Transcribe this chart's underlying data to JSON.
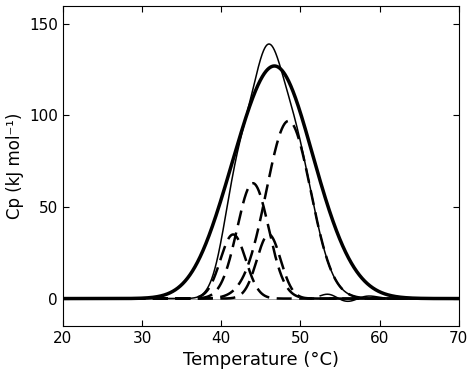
{
  "xlim": [
    20,
    70
  ],
  "ylim": [
    -15,
    160
  ],
  "xlabel": "Temperature (°C)",
  "ylabel": "Cp (kJ mol⁻¹)",
  "xticks": [
    20,
    30,
    40,
    50,
    60,
    70
  ],
  "yticks": [
    0,
    50,
    100,
    150
  ],
  "components": [
    {
      "mu": 48.5,
      "sigma": 2.8,
      "amplitude": 97.0,
      "lw": 1.8
    },
    {
      "mu": 44.0,
      "sigma": 2.0,
      "amplitude": 63.0,
      "lw": 1.8
    },
    {
      "mu": 41.5,
      "sigma": 1.6,
      "amplitude": 35.0,
      "lw": 1.8
    },
    {
      "mu": 46.0,
      "sigma": 1.5,
      "amplitude": 35.0,
      "lw": 1.8
    }
  ],
  "exp_components": [
    {
      "mu": 48.8,
      "sigma": 3.5,
      "amplitude": 85.0
    },
    {
      "mu": 43.5,
      "sigma": 3.0,
      "amplitude": 45.0
    },
    {
      "mu": 41.0,
      "sigma": 2.5,
      "amplitude": 18.0
    },
    {
      "mu": 46.0,
      "sigma": 2.2,
      "amplitude": 20.0
    }
  ],
  "main_curve_lw": 2.5,
  "fit_curve_lw": 1.1,
  "dash_pattern": [
    6,
    3
  ],
  "background_color": "#ffffff",
  "line_color": "#000000",
  "figsize": [
    4.74,
    3.75
  ],
  "dpi": 100
}
